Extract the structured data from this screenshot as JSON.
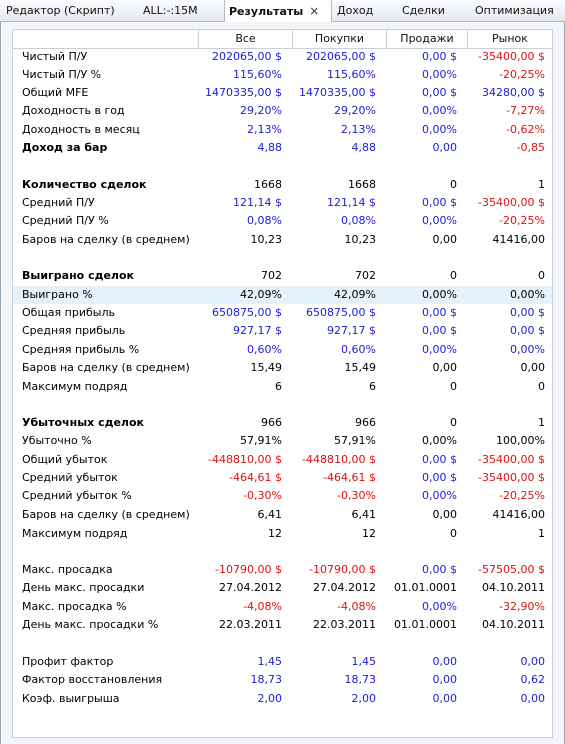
{
  "tabs": [
    {
      "label": "Редактор (Скрипт)"
    },
    {
      "label": "ALL:-:15M"
    },
    {
      "label": "Результаты",
      "close": "×"
    },
    {
      "label": "Доход"
    },
    {
      "label": "Сделки"
    },
    {
      "label": "Оптимизация"
    }
  ],
  "columns": [
    "Все",
    "Покупки",
    "Продажи",
    "Рынок"
  ],
  "colors": {
    "positive": "#1c1cd6",
    "negative": "#e01010",
    "highlight": "#e5f1fb"
  },
  "rows": [
    {
      "label": "Чистый П/У",
      "v": [
        "202065,00 $",
        "202065,00 $",
        "0,00 $",
        "-35400,00 $"
      ],
      "c": [
        "blue",
        "blue",
        "blue",
        "red"
      ]
    },
    {
      "label": "Чистый П/У %",
      "v": [
        "115,60%",
        "115,60%",
        "0,00%",
        "-20,25%"
      ],
      "c": [
        "blue",
        "blue",
        "blue",
        "red"
      ]
    },
    {
      "label": "Общий MFE",
      "v": [
        "1470335,00 $",
        "1470335,00 $",
        "0,00 $",
        "34280,00 $"
      ],
      "c": [
        "blue",
        "blue",
        "blue",
        "blue"
      ]
    },
    {
      "label": "Доходность в год",
      "v": [
        "29,20%",
        "29,20%",
        "0,00%",
        "-7,27%"
      ],
      "c": [
        "blue",
        "blue",
        "blue",
        "red"
      ]
    },
    {
      "label": "Доходность в месяц",
      "v": [
        "2,13%",
        "2,13%",
        "0,00%",
        "-0,62%"
      ],
      "c": [
        "blue",
        "blue",
        "blue",
        "red"
      ]
    },
    {
      "label": "Доход за бар",
      "bold": true,
      "v": [
        "4,88",
        "4,88",
        "0,00",
        "-0,85"
      ],
      "c": [
        "blue",
        "blue",
        "blue",
        "red"
      ]
    },
    {
      "label": "Количество сделок",
      "bold": true,
      "v": [
        "1668",
        "1668",
        "0",
        "1"
      ],
      "c": [
        "black",
        "black",
        "black",
        "black"
      ]
    },
    {
      "label": "Средний П/У",
      "v": [
        "121,14 $",
        "121,14 $",
        "0,00 $",
        "-35400,00 $"
      ],
      "c": [
        "blue",
        "blue",
        "blue",
        "red"
      ]
    },
    {
      "label": "Средний П/У %",
      "v": [
        "0,08%",
        "0,08%",
        "0,00%",
        "-20,25%"
      ],
      "c": [
        "blue",
        "blue",
        "blue",
        "red"
      ]
    },
    {
      "label": "Баров на сделку (в среднем)",
      "v": [
        "10,23",
        "10,23",
        "0,00",
        "41416,00"
      ],
      "c": [
        "black",
        "black",
        "black",
        "black"
      ]
    },
    {
      "label": "Выиграно сделок",
      "bold": true,
      "v": [
        "702",
        "702",
        "0",
        "0"
      ],
      "c": [
        "black",
        "black",
        "black",
        "black"
      ]
    },
    {
      "label": "Выиграно %",
      "highlight": true,
      "v": [
        "42,09%",
        "42,09%",
        "0,00%",
        "0,00%"
      ],
      "c": [
        "black",
        "black",
        "black",
        "black"
      ]
    },
    {
      "label": "Общая прибыль",
      "v": [
        "650875,00 $",
        "650875,00 $",
        "0,00 $",
        "0,00 $"
      ],
      "c": [
        "blue",
        "blue",
        "blue",
        "blue"
      ]
    },
    {
      "label": "Средняя прибыль",
      "v": [
        "927,17 $",
        "927,17 $",
        "0,00 $",
        "0,00 $"
      ],
      "c": [
        "blue",
        "blue",
        "blue",
        "blue"
      ]
    },
    {
      "label": "Средняя прибыль %",
      "v": [
        "0,60%",
        "0,60%",
        "0,00%",
        "0,00%"
      ],
      "c": [
        "blue",
        "blue",
        "blue",
        "blue"
      ]
    },
    {
      "label": "Баров на сделку (в среднем)",
      "v": [
        "15,49",
        "15,49",
        "0,00",
        "0,00"
      ],
      "c": [
        "black",
        "black",
        "black",
        "black"
      ]
    },
    {
      "label": "Максимум подряд",
      "v": [
        "6",
        "6",
        "0",
        "0"
      ],
      "c": [
        "black",
        "black",
        "black",
        "black"
      ]
    },
    {
      "label": "Убыточных сделок",
      "bold": true,
      "v": [
        "966",
        "966",
        "0",
        "1"
      ],
      "c": [
        "black",
        "black",
        "black",
        "black"
      ]
    },
    {
      "label": "Убыточно %",
      "v": [
        "57,91%",
        "57,91%",
        "0,00%",
        "100,00%"
      ],
      "c": [
        "black",
        "black",
        "black",
        "black"
      ]
    },
    {
      "label": "Общий убыток",
      "v": [
        "-448810,00 $",
        "-448810,00 $",
        "0,00 $",
        "-35400,00 $"
      ],
      "c": [
        "red",
        "red",
        "blue",
        "red"
      ]
    },
    {
      "label": "Средний убыток",
      "v": [
        "-464,61 $",
        "-464,61 $",
        "0,00 $",
        "-35400,00 $"
      ],
      "c": [
        "red",
        "red",
        "blue",
        "red"
      ]
    },
    {
      "label": "Средний убыток %",
      "v": [
        "-0,30%",
        "-0,30%",
        "0,00%",
        "-20,25%"
      ],
      "c": [
        "red",
        "red",
        "blue",
        "red"
      ]
    },
    {
      "label": "Баров на сделку (в среднем)",
      "v": [
        "6,41",
        "6,41",
        "0,00",
        "41416,00"
      ],
      "c": [
        "black",
        "black",
        "black",
        "black"
      ]
    },
    {
      "label": "Максимум подряд",
      "v": [
        "12",
        "12",
        "0",
        "1"
      ],
      "c": [
        "black",
        "black",
        "black",
        "black"
      ]
    },
    {
      "label": "Макс. просадка",
      "v": [
        "-10790,00 $",
        "-10790,00 $",
        "0,00 $",
        "-57505,00 $"
      ],
      "c": [
        "red",
        "red",
        "blue",
        "red"
      ]
    },
    {
      "label": "День макс. просадки",
      "v": [
        "27.04.2012",
        "27.04.2012",
        "01.01.0001",
        "04.10.2011"
      ],
      "c": [
        "black",
        "black",
        "black",
        "black"
      ]
    },
    {
      "label": "Макс. просадка %",
      "v": [
        "-4,08%",
        "-4,08%",
        "0,00%",
        "-32,90%"
      ],
      "c": [
        "red",
        "red",
        "blue",
        "red"
      ]
    },
    {
      "label": "День макс. просадки %",
      "v": [
        "22.03.2011",
        "22.03.2011",
        "01.01.0001",
        "04.10.2011"
      ],
      "c": [
        "black",
        "black",
        "black",
        "black"
      ]
    },
    {
      "label": "Профит фактор",
      "v": [
        "1,45",
        "1,45",
        "0,00",
        "0,00"
      ],
      "c": [
        "blue",
        "blue",
        "blue",
        "blue"
      ]
    },
    {
      "label": "Фактор восстановления",
      "v": [
        "18,73",
        "18,73",
        "0,00",
        "0,62"
      ],
      "c": [
        "blue",
        "blue",
        "blue",
        "blue"
      ]
    },
    {
      "label": "Коэф. выигрыша",
      "v": [
        "2,00",
        "2,00",
        "0,00",
        "0,00"
      ],
      "c": [
        "blue",
        "blue",
        "blue",
        "blue"
      ]
    }
  ]
}
